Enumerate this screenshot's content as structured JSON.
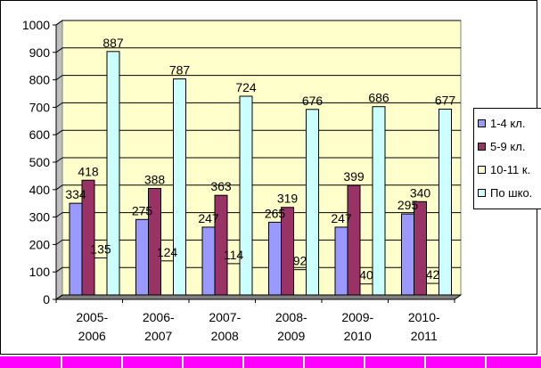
{
  "chart_data": {
    "type": "bar",
    "categories": [
      "2005-\n2006",
      "2006-\n2007",
      "2007-\n2008",
      "2008-\n2009",
      "2009-\n2010",
      "2010-\n2011"
    ],
    "series": [
      {
        "name": "1-4 кл.",
        "color": "#9999ff",
        "values": [
          334,
          275,
          247,
          265,
          247,
          295
        ]
      },
      {
        "name": "5-9 кл.",
        "color": "#993366",
        "values": [
          418,
          388,
          363,
          319,
          399,
          340
        ]
      },
      {
        "name": "10-11 к.",
        "color": "#ffffcc",
        "values": [
          135,
          124,
          114,
          92,
          40,
          42
        ]
      },
      {
        "name": "По шко.",
        "color": "#ccffff",
        "values": [
          887,
          787,
          724,
          676,
          686,
          677
        ]
      }
    ],
    "ylim": [
      0,
      1000
    ],
    "yticks": [
      0,
      100,
      200,
      300,
      400,
      500,
      600,
      700,
      800,
      900,
      1000
    ],
    "plot_background": "#ffffcc",
    "grid": true,
    "legend_position": "right",
    "title": "",
    "xlabel": "",
    "ylabel": ""
  },
  "footer": {
    "strip_color": "#ff00ff"
  }
}
